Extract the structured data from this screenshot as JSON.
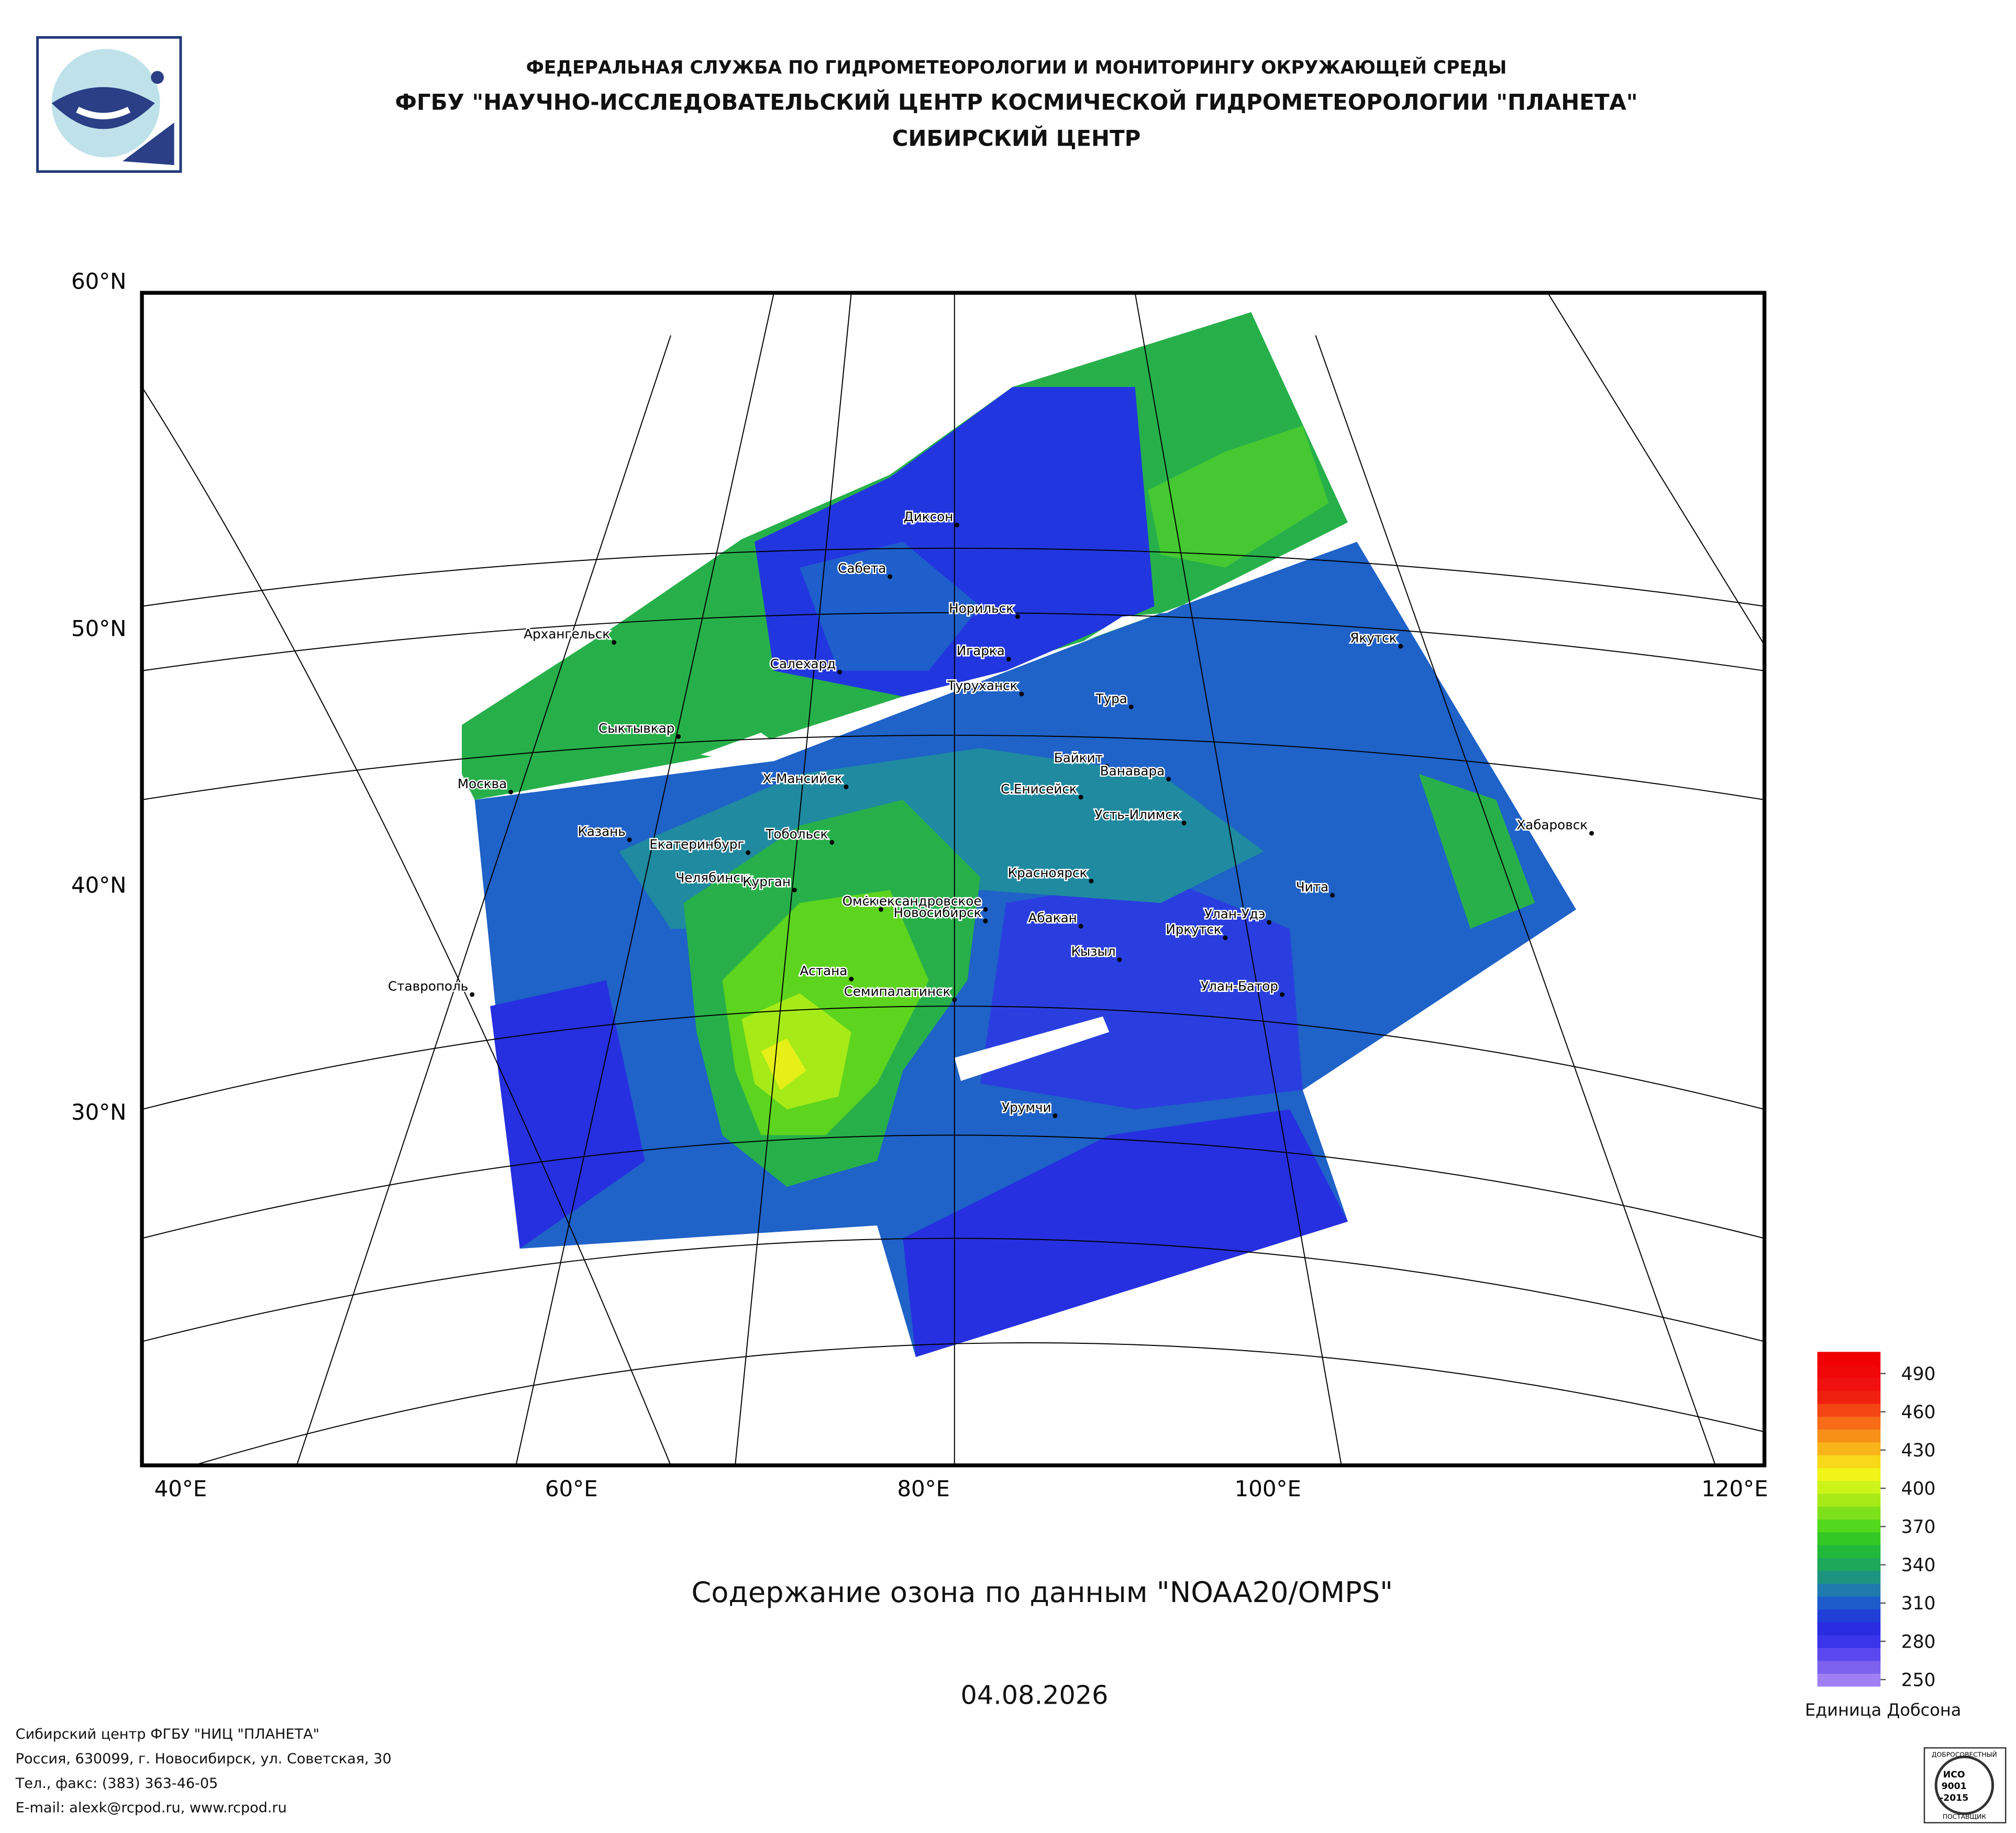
{
  "header": {
    "line1": "ФЕДЕРАЛЬНАЯ СЛУЖБА ПО ГИДРОМЕТЕОРОЛОГИИ И МОНИТОРИНГУ ОКРУЖАЮЩЕЙ СРЕДЫ",
    "line2": "ФГБУ \"НАУЧНО-ИССЛЕДОВАТЕЛЬСКИЙ ЦЕНТР КОСМИЧЕСКОЙ ГИДРОМЕТЕОРОЛОГИИ \"ПЛАНЕТА\"",
    "line3": "СИБИРСКИЙ ЦЕНТР"
  },
  "map": {
    "lat_labels": [
      "60°N",
      "50°N",
      "40°N",
      "30°N"
    ],
    "lon_labels": [
      "40°E",
      "60°E",
      "80°E",
      "100°E",
      "120°E"
    ],
    "cities": [
      "Диксон",
      "Сабета",
      "Норильск",
      "Архангельск",
      "Игарка",
      "Салехард",
      "Туруханск",
      "Якутск",
      "Тура",
      "Сыктывкар",
      "Байкит",
      "Ванавара",
      "Х-Мансийск",
      "С.Енисейск",
      "Москва",
      "Усть-Илимск",
      "Хабаровск",
      "Казань",
      "Тобольск",
      "Екатеринбург",
      "Челябинск",
      "Красноярск",
      "Александровское",
      "Чита",
      "Курган",
      "Омск",
      "Новосибирск",
      "Абакан",
      "Улан-Удэ",
      "Иркутск",
      "Кызыл",
      "Астана",
      "Ставрополь",
      "Семипалатинск",
      "Улан-Батор",
      "Урумчи"
    ]
  },
  "colorbar": {
    "lim": [
      245,
      507
    ],
    "ticks": [
      490,
      460,
      430,
      400,
      370,
      340,
      310,
      280,
      250
    ],
    "label": "Единица Добсона",
    "colors": [
      "#a07ff2",
      "#7d62f0",
      "#5a48ee",
      "#3a34ea",
      "#2a2ce2",
      "#1f3fd8",
      "#1e5ccc",
      "#1f7aae",
      "#1e9480",
      "#1ea85a",
      "#22b83a",
      "#34c824",
      "#52d81c",
      "#7ee01a",
      "#a6ea18",
      "#ccf418",
      "#f0f418",
      "#f8d818",
      "#f8b418",
      "#f89018",
      "#f86c18",
      "#f44614",
      "#f02010",
      "#f01010",
      "#f00808",
      "#f00000"
    ]
  },
  "caption": "Содержание озона по данным \"NOAA20/OMPS\"",
  "date": "04.08.2026",
  "footer": [
    "Сибирский центр ФГБУ \"НИЦ \"ПЛАНЕТА\"",
    "Россия, 630099, г. Новосибирск, ул. Советская, 30",
    "Тел., факс: (383) 363-46-05",
    "E-mail: alexk@rcpod.ru, www.rcpod.ru"
  ],
  "iso_logo": [
    "ДОБРОСОВЕСТНЫЙ",
    "ИСО",
    "9001",
    "-2015",
    "ПОСТАВЩИК"
  ]
}
